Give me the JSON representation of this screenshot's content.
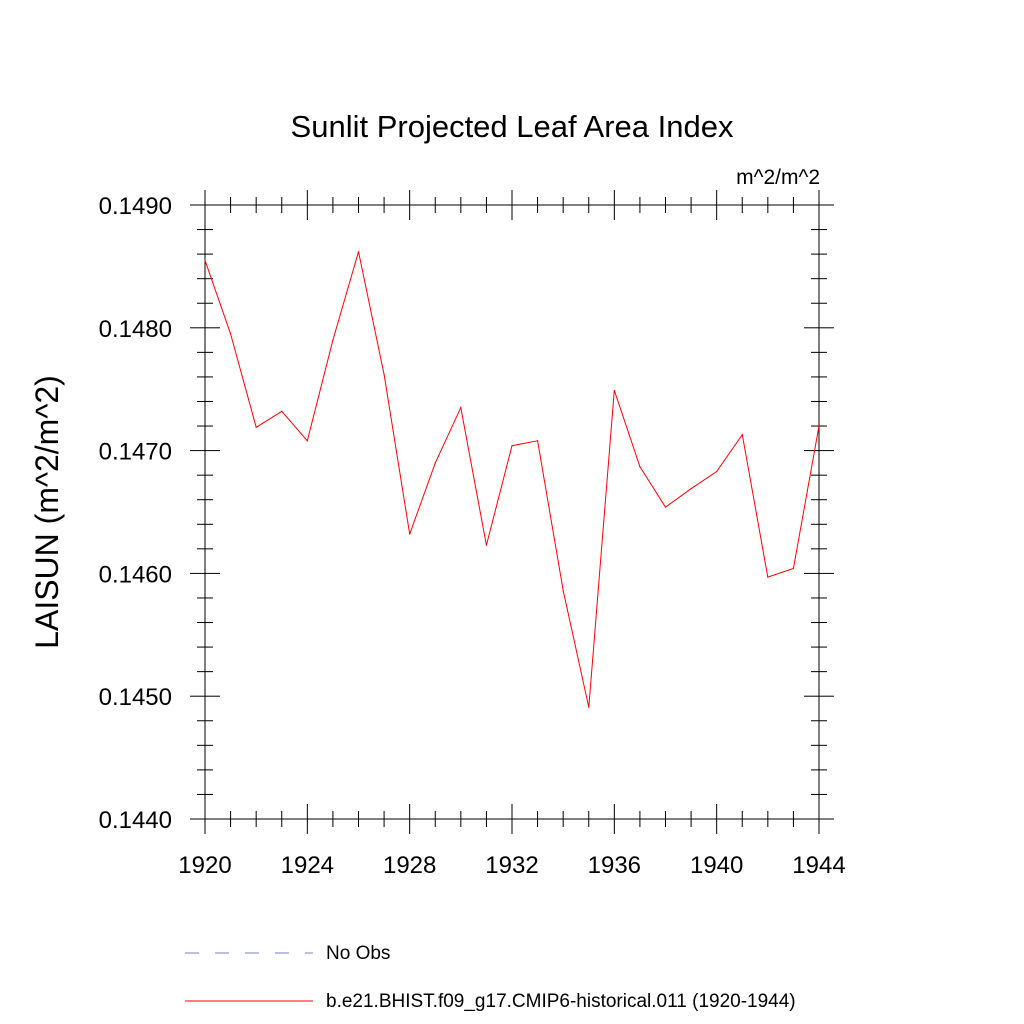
{
  "chart_data": {
    "type": "line",
    "title": "Sunlit Projected Leaf Area Index",
    "units_label": "m^2/m^2",
    "ylabel": "LAISUN  (m^2/m^2)",
    "xlabel": "",
    "xlim": [
      1920,
      1944
    ],
    "ylim": [
      0.144,
      0.149
    ],
    "x_ticks": [
      1920,
      1924,
      1928,
      1932,
      1936,
      1940,
      1944
    ],
    "x_tick_labels": [
      "1920",
      "1924",
      "1928",
      "1932",
      "1936",
      "1940",
      "1944"
    ],
    "y_ticks": [
      0.144,
      0.145,
      0.146,
      0.147,
      0.148,
      0.149
    ],
    "y_tick_labels": [
      "0.1440",
      "0.1450",
      "0.1460",
      "0.1470",
      "0.1480",
      "0.1490"
    ],
    "grid": false,
    "legend_position": "bottom",
    "series": [
      {
        "name": "b.e21.BHIST.f09_g17.CMIP6-historical.011 (1920-1944)",
        "color": "#ff0000",
        "style": "solid",
        "x": [
          1920,
          1921,
          1922,
          1923,
          1924,
          1925,
          1926,
          1927,
          1928,
          1929,
          1930,
          1931,
          1932,
          1933,
          1934,
          1935,
          1936,
          1937,
          1938,
          1939,
          1940,
          1941,
          1942,
          1943,
          1944
        ],
        "y": [
          0.14855,
          0.14795,
          0.14719,
          0.14732,
          0.14708,
          0.1479,
          0.14862,
          0.14762,
          0.14632,
          0.1469,
          0.14735,
          0.14623,
          0.14704,
          0.14708,
          0.14586,
          0.14491,
          0.14749,
          0.14687,
          0.14654,
          0.14669,
          0.14683,
          0.14713,
          0.14597,
          0.14604,
          0.1472
        ]
      }
    ],
    "legend": [
      {
        "label": "No Obs",
        "color": "#7b7bcc",
        "style": "dashed"
      },
      {
        "label": "b.e21.BHIST.f09_g17.CMIP6-historical.011 (1920-1944)",
        "color": "#ff0000",
        "style": "solid"
      }
    ]
  }
}
